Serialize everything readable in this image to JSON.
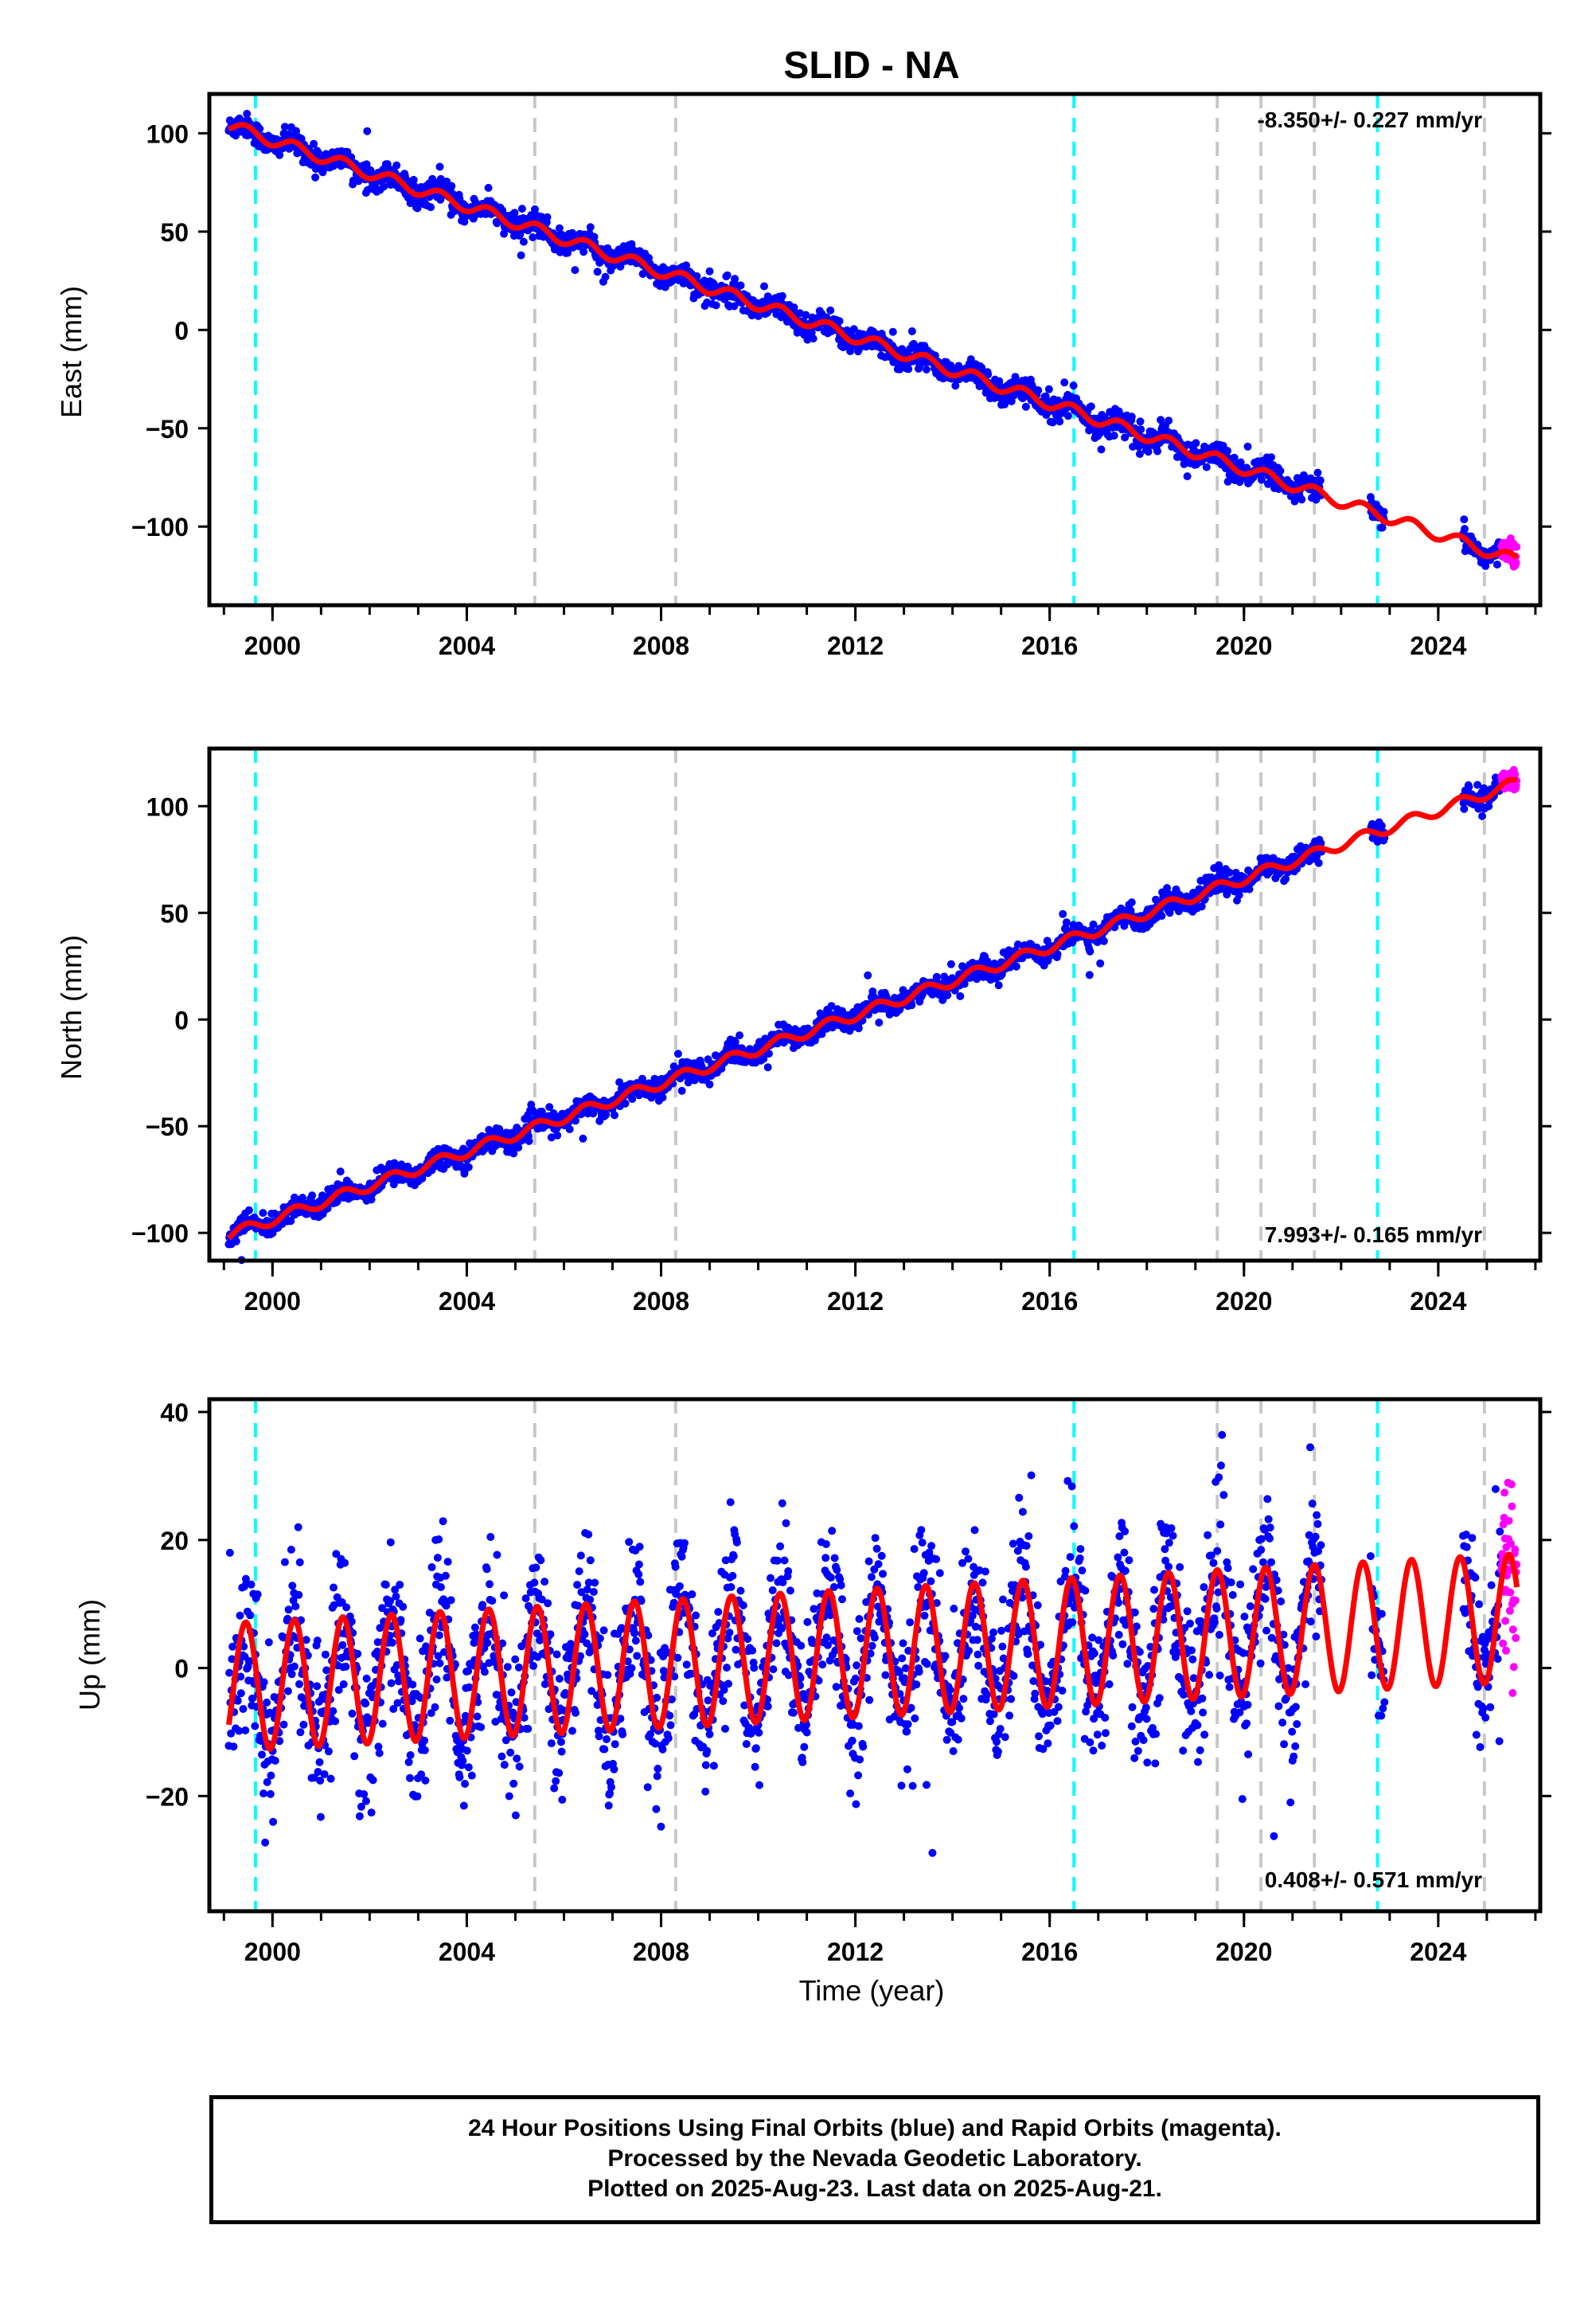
{
  "title": "SLID - NA",
  "colors": {
    "final_orbits": "#0000ff",
    "rapid_orbits": "#ff00ff",
    "model": "#ff0000",
    "antenna_change": "#00ffff",
    "other_event": "#c8c8c8"
  },
  "footer": {
    "line1": "24 Hour Positions Using Final Orbits (blue) and Rapid Orbits (magenta).",
    "line2": "Processed by the Nevada Geodetic Laboratory.",
    "line3": "Plotted on 2025-Aug-23. Last data on 2025-Aug-21."
  },
  "chart_data": [
    {
      "type": "scatter",
      "component": "east",
      "ylabel": "East (mm)",
      "xlabel": "",
      "xlim": [
        1998.7,
        2026.1
      ],
      "ylim": [
        -140,
        120
      ],
      "yticks": [
        100,
        50,
        0,
        -50,
        -100
      ],
      "xticks": [
        2000,
        2004,
        2008,
        2012,
        2016,
        2020,
        2024
      ],
      "rate_label": "-8.350+/- 0.227 mm/yr",
      "rate_position": "top-right",
      "trend": {
        "start_year": 1999.1,
        "start_value": 104,
        "slope": -8.35
      },
      "seasonal_amplitude": 3,
      "scatter_spread": 3,
      "data_start": 1999.1,
      "data_end": 2025.3,
      "rapid_start": 2025.3,
      "rapid_end": 2025.62,
      "gaps": [
        [
          2021.6,
          2022.6
        ],
        [
          2022.9,
          2024.5
        ]
      ]
    },
    {
      "type": "scatter",
      "component": "north",
      "ylabel": "North (mm)",
      "xlabel": "",
      "xlim": [
        1998.7,
        2026.1
      ],
      "ylim": [
        -113,
        127
      ],
      "yticks": [
        100,
        50,
        0,
        -50,
        -100
      ],
      "xticks": [
        2000,
        2004,
        2008,
        2012,
        2016,
        2020,
        2024
      ],
      "rate_label": "7.993+/- 0.165 mm/yr",
      "rate_position": "bottom-right",
      "trend": {
        "start_year": 1999.1,
        "start_value": -101,
        "slope": 7.993
      },
      "seasonal_amplitude": 2.5,
      "scatter_spread": 2.5,
      "data_start": 1999.1,
      "data_end": 2025.3,
      "rapid_start": 2025.3,
      "rapid_end": 2025.62,
      "gaps": [
        [
          2021.6,
          2022.6
        ],
        [
          2022.9,
          2024.5
        ]
      ]
    },
    {
      "type": "scatter",
      "component": "up",
      "ylabel": "Up (mm)",
      "xlabel": "Time (year)",
      "xlim": [
        1998.7,
        2026.1
      ],
      "ylim": [
        -38,
        42
      ],
      "yticks": [
        40,
        20,
        0,
        -20
      ],
      "xticks": [
        2000,
        2004,
        2008,
        2012,
        2016,
        2020,
        2024
      ],
      "rate_label": "0.408+/- 0.571 mm/yr",
      "rate_position": "bottom-right",
      "trend": {
        "start_year": 1999.1,
        "start_value": -3,
        "slope": 0.408
      },
      "seasonal_amplitude": 10,
      "scatter_spread": 6,
      "data_start": 1999.1,
      "data_end": 2025.3,
      "rapid_start": 2025.3,
      "rapid_end": 2025.62,
      "gaps": [
        [
          2021.6,
          2022.6
        ],
        [
          2022.9,
          2024.5
        ]
      ]
    }
  ],
  "event_lines": [
    {
      "year": 1999.65,
      "kind": "antenna_change"
    },
    {
      "year": 2005.4,
      "kind": "other_event"
    },
    {
      "year": 2008.3,
      "kind": "other_event"
    },
    {
      "year": 2016.5,
      "kind": "antenna_change"
    },
    {
      "year": 2019.45,
      "kind": "other_event"
    },
    {
      "year": 2020.35,
      "kind": "other_event"
    },
    {
      "year": 2021.45,
      "kind": "other_event"
    },
    {
      "year": 2022.75,
      "kind": "antenna_change"
    },
    {
      "year": 2024.95,
      "kind": "other_event"
    }
  ]
}
